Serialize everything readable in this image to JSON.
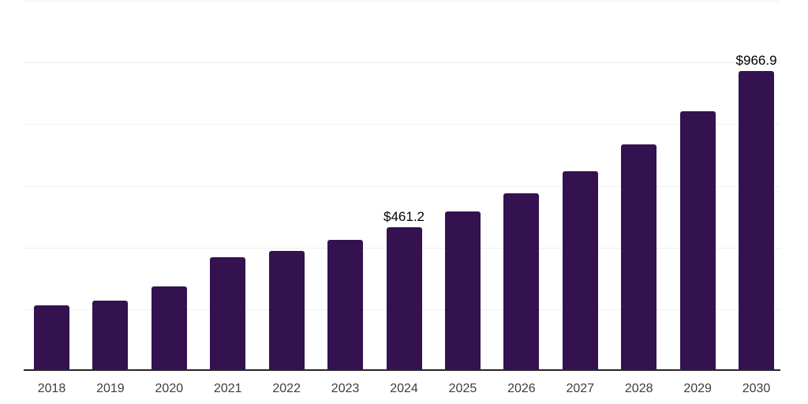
{
  "chart_data": {
    "type": "bar",
    "title": "",
    "xlabel": "",
    "ylabel": "",
    "categories": [
      "2018",
      "2019",
      "2020",
      "2021",
      "2022",
      "2023",
      "2024",
      "2025",
      "2026",
      "2027",
      "2028",
      "2029",
      "2030"
    ],
    "values": [
      207.2,
      222.5,
      268.6,
      363.2,
      383.7,
      419.5,
      461.2,
      511.6,
      570.4,
      642.1,
      729.0,
      836.4,
      966.9
    ],
    "data_labels": [
      {
        "category": "2024",
        "text": "$461.2"
      },
      {
        "category": "2030",
        "text": "$966.9"
      }
    ],
    "ylim": [
      0,
      1200
    ],
    "gridline_step": 200,
    "y_tick_labels_visible": false,
    "legend": "none",
    "grid": "horizontal",
    "colors": {
      "bar": "#34124f",
      "axis_line": "#262626",
      "gridline": "#efefef",
      "tick_label": "#3d3d3d",
      "data_label": "#000000",
      "background": "#ffffff"
    }
  }
}
